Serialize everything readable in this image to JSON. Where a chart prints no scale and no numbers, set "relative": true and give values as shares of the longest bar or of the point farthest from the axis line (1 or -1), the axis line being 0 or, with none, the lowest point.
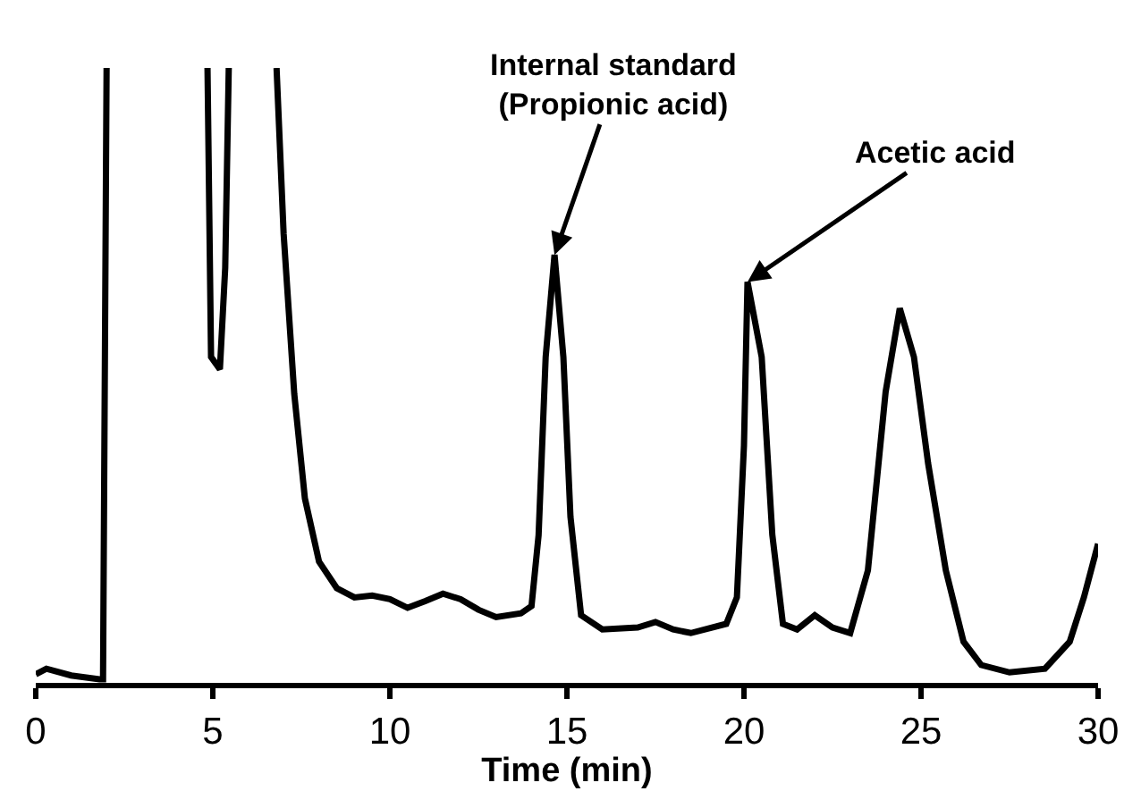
{
  "chart_data": {
    "type": "line",
    "relative": true,
    "xlabel": "Time (min)",
    "xlim": [
      0,
      30
    ],
    "xticks": [
      0,
      5,
      10,
      15,
      20,
      25,
      30
    ],
    "tick_labels": "x",
    "marker": "none",
    "line_style": "solid",
    "annotations": [
      {
        "text": "Internal standard\n(Propionic acid)",
        "x": 14.65,
        "y": 0.696
      },
      {
        "text": "Acetic acid",
        "x": 20.1,
        "y": 0.652
      }
    ],
    "series": [
      {
        "color": "#000000",
        "x": [
          0,
          0.3,
          1,
          1.8,
          1.9,
          2.0,
          3.4,
          4.85,
          4.95,
          5.2,
          5.35,
          5.45,
          6.1,
          6.8,
          7.0,
          7.3,
          7.6,
          8.0,
          8.5,
          9,
          9.5,
          10,
          10.5,
          11,
          11.5,
          12,
          12.5,
          13,
          13.7,
          14.0,
          14.2,
          14.4,
          14.65,
          14.9,
          15.1,
          15.4,
          16,
          17,
          17.5,
          18,
          18.5,
          19.5,
          19.8,
          20.0,
          20.1,
          20.5,
          20.8,
          21.1,
          21.5,
          22,
          22.5,
          23,
          23.5,
          24,
          24.4,
          24.8,
          25.2,
          25.7,
          26.2,
          26.7,
          27.5,
          28.5,
          29.2,
          29.6,
          30
        ],
        "values": [
          0.014,
          0.023,
          0.012,
          0.006,
          0.006,
          1,
          null,
          1,
          0.53,
          0.51,
          0.675,
          1,
          null,
          1,
          0.73,
          0.47,
          0.3,
          0.197,
          0.154,
          0.139,
          0.142,
          0.136,
          0.122,
          0.133,
          0.145,
          0.136,
          0.119,
          0.107,
          0.113,
          0.125,
          0.24,
          0.53,
          0.696,
          0.53,
          0.27,
          0.11,
          0.087,
          0.09,
          0.099,
          0.087,
          0.081,
          0.096,
          0.139,
          0.386,
          0.652,
          0.53,
          0.241,
          0.096,
          0.087,
          0.11,
          0.09,
          0.081,
          0.183,
          0.473,
          0.609,
          0.53,
          0.357,
          0.183,
          0.067,
          0.029,
          0.017,
          0.023,
          0.067,
          0.139,
          0.226
        ]
      }
    ]
  }
}
